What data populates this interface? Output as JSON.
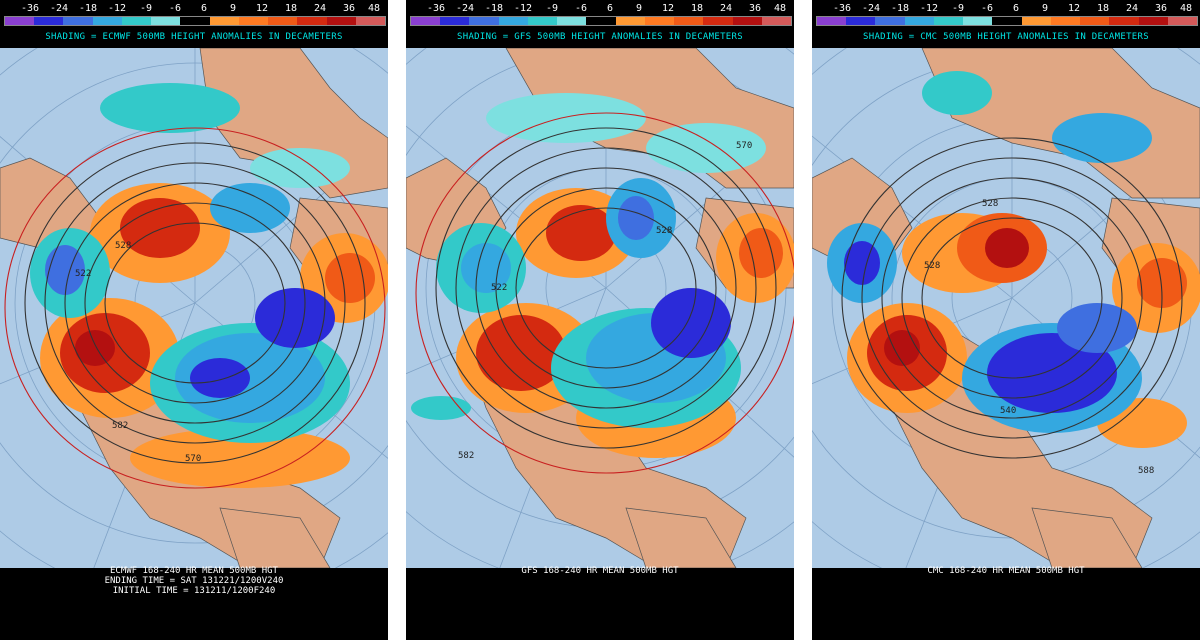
{
  "legend": {
    "values": [
      "-36",
      "-24",
      "-18",
      "-12",
      "-9",
      "-6",
      "6",
      "9",
      "12",
      "18",
      "24",
      "36",
      "48"
    ],
    "colors": [
      "#8a3fd0",
      "#2b2bd9",
      "#3f6fe0",
      "#34a8e0",
      "#33c9c9",
      "#7de0e0",
      "#000000",
      "#ff9933",
      "#ff7a22",
      "#f05a17",
      "#d42a10",
      "#b31010",
      "#d45a5a"
    ]
  },
  "panels": [
    {
      "model": "ECMWF",
      "shading_label": "SHADING = ECMWF 500MB HEIGHT ANOMALIES IN DECAMETERS",
      "footer": [
        "ECMWF 168-240 HR MEAN 500MB HGT",
        "ENDING TIME = SAT 131221/1200V240",
        "INITIAL TIME = 131211/1200F240"
      ],
      "contour_labels": [
        "528",
        "522",
        "582",
        "570"
      ]
    },
    {
      "model": "GFS",
      "shading_label": "SHADING = GFS 500MB HEIGHT ANOMALIES IN DECAMETERS",
      "footer": [
        "GFS 168-240 HR MEAN 500MB HGT"
      ],
      "contour_labels": [
        "582",
        "522",
        "528",
        "570"
      ]
    },
    {
      "model": "CMC",
      "shading_label": "SHADING = CMC 500MB HEIGHT ANOMALIES IN DECAMETERS",
      "footer": [
        "CMC 168-240 HR MEAN 500MB HGT"
      ],
      "contour_labels": [
        "528",
        "528",
        "540",
        "588"
      ]
    }
  ]
}
